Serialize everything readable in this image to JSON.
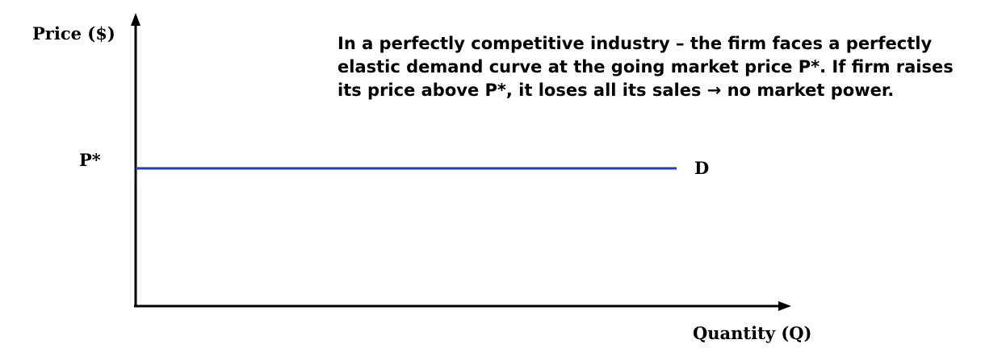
{
  "axes": {
    "y_label": "Price ($)",
    "x_label": "Quantity (Q)"
  },
  "price_level": {
    "label": "P*"
  },
  "demand_curve": {
    "label": "D",
    "color": "#1f3fbf",
    "shape": "horizontal",
    "description_type": "perfectly elastic"
  },
  "axis_color": "#000000",
  "annotation": {
    "text": "In a perfectly competitive industry – the firm faces a perfectly elastic demand curve at the going market price P*. If firm raises its price above P*, it loses all its sales → no market power."
  }
}
